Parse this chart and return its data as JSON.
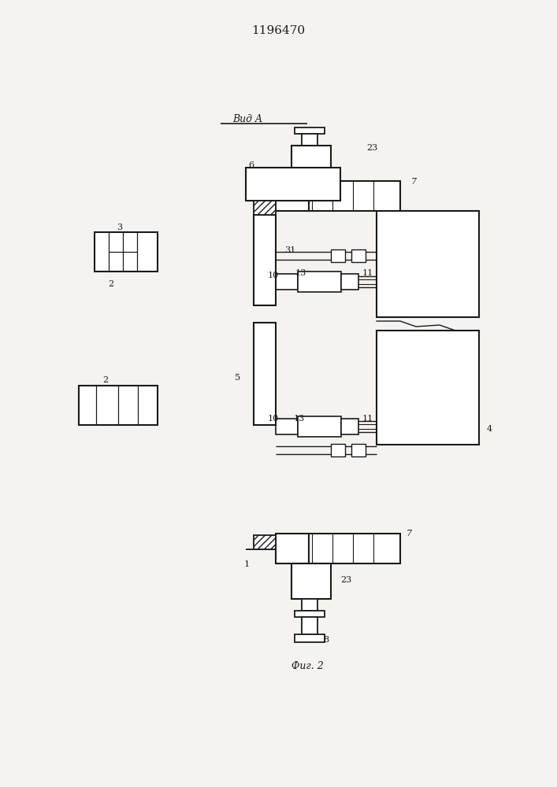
{
  "title": "1196470",
  "fig_label": "Фиг. 2",
  "view_label": "Вид A",
  "bg_color": "#ece9e4",
  "line_color": "#1a1a1a",
  "paper_color": "#f5f3ef"
}
